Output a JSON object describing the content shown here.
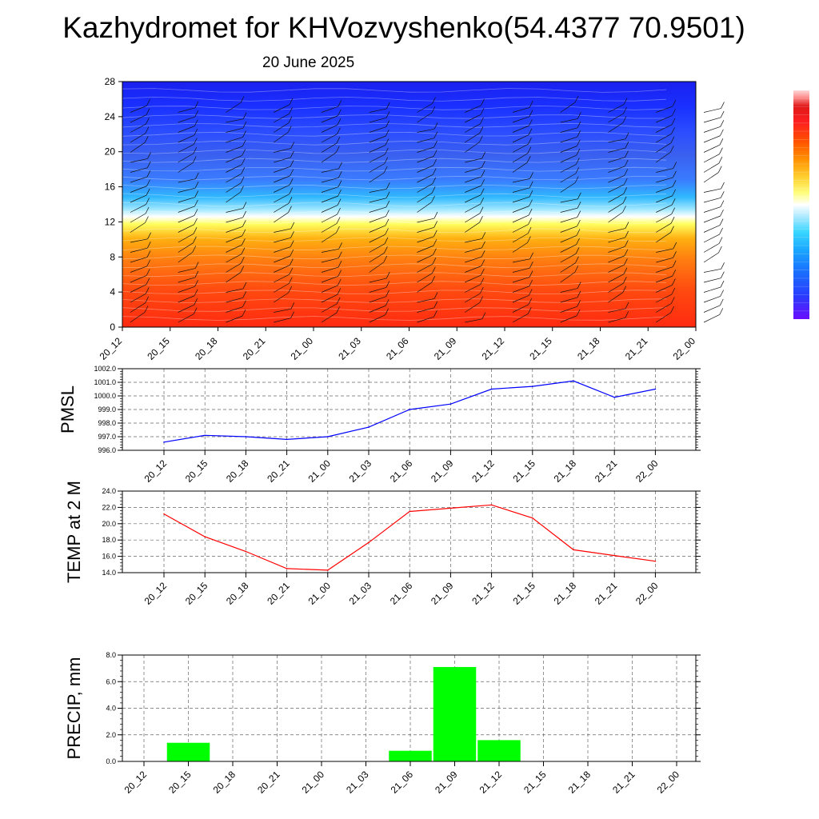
{
  "title": "Kazhydromet for KHVozvyshenko(54.4377 70.9501)",
  "subtitle": "20 June 2025",
  "time_labels": [
    "20_12",
    "20_15",
    "20_18",
    "20_21",
    "21_00",
    "21_03",
    "21_06",
    "21_09",
    "21_12",
    "21_15",
    "21_18",
    "21_21",
    "22_00"
  ],
  "colors": {
    "pmsl_line": "#0000ff",
    "temp_line": "#ff0000",
    "precip_bar": "#00ff00",
    "colorbar": [
      "#6a0dff",
      "#2a3cff",
      "#1a6cff",
      "#1aa5ff",
      "#38d6ff",
      "#a8eaff",
      "#ffffff",
      "#ffff80",
      "#ffe040",
      "#ffb000",
      "#ff8000",
      "#ff5000",
      "#ff2020",
      "#e01010",
      "#ffa0a0",
      "#ffd8d8"
    ]
  },
  "chart_data": [
    {
      "type": "heatmap",
      "title": "Kazhydromet for KHVozvyshenko(54.4377 70.9501)",
      "subtitle": "20 June 2025",
      "x": [
        "20_12",
        "20_15",
        "20_18",
        "20_21",
        "21_00",
        "21_03",
        "21_06",
        "21_09",
        "21_12",
        "21_15",
        "21_18",
        "21_21",
        "22_00"
      ],
      "yticks": [
        "0",
        "4",
        "8",
        "12",
        "16",
        "20",
        "24",
        "28"
      ],
      "ylim": [
        0,
        28
      ]
    },
    {
      "type": "line",
      "ylabel": "PMSL",
      "x": [
        "20_12",
        "20_15",
        "20_18",
        "20_21",
        "21_00",
        "21_03",
        "21_06",
        "21_09",
        "21_12",
        "21_15",
        "21_18",
        "21_21",
        "22_00"
      ],
      "values": [
        996.6,
        997.1,
        997.0,
        996.8,
        997.0,
        997.7,
        999.0,
        999.4,
        1000.5,
        1000.7,
        1001.1,
        999.9,
        1000.5
      ],
      "ylim": [
        996.0,
        1002.0
      ],
      "yticks": [
        "996.0",
        "997.0",
        "998.0",
        "999.0",
        "1000.0",
        "1001.0",
        "1002.0"
      ],
      "grid": true
    },
    {
      "type": "line",
      "ylabel": "TEMP at 2 M",
      "x": [
        "20_12",
        "20_15",
        "20_18",
        "20_21",
        "21_00",
        "21_03",
        "21_06",
        "21_09",
        "21_12",
        "21_15",
        "21_18",
        "21_21",
        "22_00"
      ],
      "values": [
        21.2,
        18.4,
        16.6,
        14.5,
        14.3,
        17.7,
        21.5,
        21.9,
        22.3,
        20.7,
        16.8,
        16.1,
        15.4
      ],
      "ylim": [
        14.0,
        24.0
      ],
      "yticks": [
        "14.0",
        "16.0",
        "18.0",
        "20.0",
        "22.0",
        "24.0"
      ],
      "grid": true
    },
    {
      "type": "bar",
      "ylabel": "PRECIP, mm",
      "categories": [
        "20_12",
        "20_15",
        "20_18",
        "20_21",
        "21_00",
        "21_03",
        "21_06",
        "21_09",
        "21_12",
        "21_15",
        "21_18",
        "21_21",
        "22_00"
      ],
      "values": [
        0,
        1.4,
        0,
        0,
        0,
        0,
        0.8,
        7.1,
        1.6,
        0,
        0,
        0,
        0
      ],
      "ylim": [
        0.0,
        8.0
      ],
      "yticks": [
        "0.0",
        "2.0",
        "4.0",
        "6.0",
        "8.0"
      ],
      "grid": true
    }
  ]
}
